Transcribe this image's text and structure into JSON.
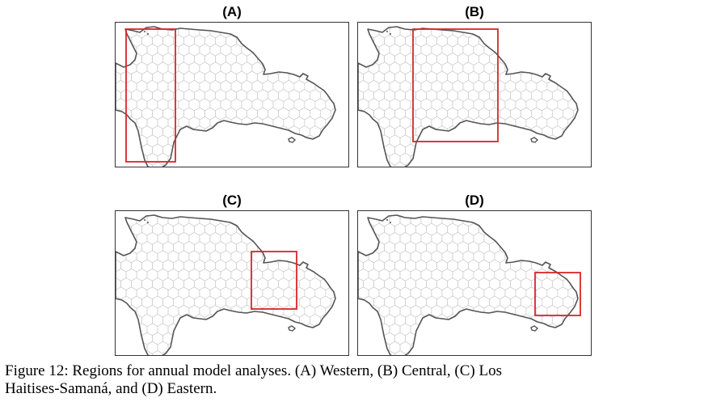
{
  "figure": {
    "panels": [
      {
        "label": "(A)",
        "region": "Western"
      },
      {
        "label": "(B)",
        "region": "Central"
      },
      {
        "label": "(C)",
        "region": "Los Haitises-Samaná"
      },
      {
        "label": "(D)",
        "region": "Eastern"
      }
    ],
    "caption": {
      "line1": "Figure 12:  Regions for annual model analyses.  (A) Western, (B) Central, (C) Los",
      "line2": "Haitises-Samaná, and (D) Eastern."
    }
  },
  "colors": {
    "coastline": "#555555",
    "hex_grid": "#c8c8c8",
    "region_box": "#d62728",
    "frame": "#333333"
  }
}
